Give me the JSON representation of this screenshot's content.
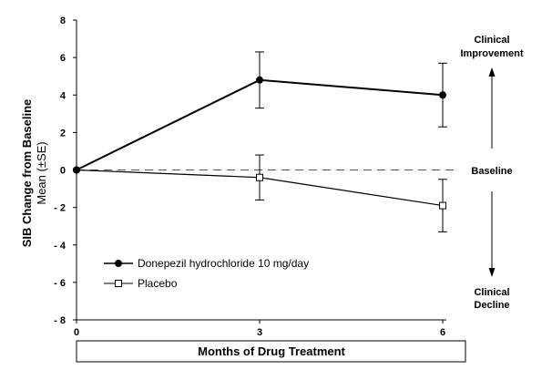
{
  "chart_data": {
    "type": "line",
    "x": [
      0,
      3,
      6
    ],
    "x_ticks": [
      "0",
      "3",
      "6"
    ],
    "xlabel": "Months of Drug Treatment",
    "ylabel": "SIB Change from Baseline",
    "ylabel_sub": "Mean (±SE)",
    "ylim": [
      -8,
      8
    ],
    "y_ticks": [
      "8",
      "6",
      "4",
      "2",
      "0",
      "- 2",
      "- 4",
      "- 6",
      "- 8"
    ],
    "y_tick_values": [
      8,
      6,
      4,
      2,
      0,
      -2,
      -4,
      -6,
      -8
    ],
    "grid": false,
    "legend_position": "lower-left",
    "baseline_value": 0,
    "series": [
      {
        "name": "Donepezil hydrochloride 10 mg/day",
        "marker": "filled-circle",
        "values": [
          0,
          4.8,
          4.0
        ],
        "se": [
          0,
          1.5,
          1.7
        ]
      },
      {
        "name": "Placebo",
        "marker": "open-square",
        "values": [
          0,
          -0.4,
          -1.9
        ],
        "se": [
          0,
          1.2,
          1.4
        ]
      }
    ],
    "annotations": {
      "top": [
        "Clinical",
        "Improvement"
      ],
      "middle": "Baseline",
      "bottom": [
        "Clinical",
        "Decline"
      ]
    }
  }
}
